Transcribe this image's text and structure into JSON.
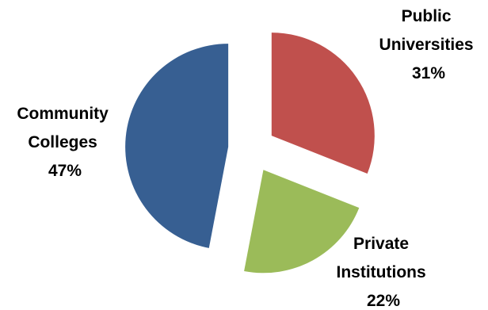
{
  "chart_data": {
    "type": "pie",
    "exploded": true,
    "slices": [
      {
        "label_lines": [
          "Public",
          "Universities"
        ],
        "percent_text": "31%",
        "value": 31,
        "color": "#C0504D"
      },
      {
        "label_lines": [
          "Private",
          "Institutions"
        ],
        "percent_text": "22%",
        "value": 22,
        "color": "#9BBB59"
      },
      {
        "label_lines": [
          "Community",
          "Colleges"
        ],
        "percent_text": "47%",
        "value": 47,
        "color": "#375F92"
      }
    ],
    "title": "",
    "legend": "none"
  }
}
